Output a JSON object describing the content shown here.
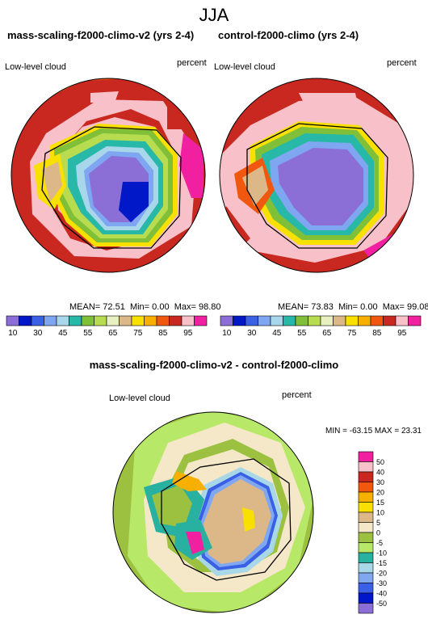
{
  "figure": {
    "title": "JJA",
    "panels": [
      {
        "id": "test",
        "title": "mass-scaling-f2000-climo-v2 (yrs 2-4)",
        "variable": "Low-level cloud",
        "units": "percent",
        "stats": {
          "mean_label": "MEAN=",
          "mean": "72.51",
          "min_label": "Min=",
          "min": "0.00",
          "max_label": "Max=",
          "max": "98.80"
        }
      },
      {
        "id": "control",
        "title": "control-f2000-climo (yrs 2-4)",
        "variable": "Low-level cloud",
        "units": "percent",
        "stats": {
          "mean_label": "MEAN=",
          "mean": "73.83",
          "min_label": "Min=",
          "min": "0.00",
          "max_label": "Max=",
          "max": "99.08"
        }
      }
    ],
    "diff_panel": {
      "title": "mass-scaling-f2000-climo-v2 - control-f2000-climo",
      "variable": "Low-level cloud",
      "units": "percent",
      "stats": "MIN = -63.15 MAX = 23.31"
    },
    "abs_colorbar": {
      "labels": [
        "10",
        "30",
        "45",
        "55",
        "65",
        "75",
        "85",
        "95"
      ],
      "colors": [
        "#8b6fd6",
        "#0018c8",
        "#3a60e6",
        "#7fa6f0",
        "#a8d6ea",
        "#28b8a8",
        "#80c038",
        "#b8dc50",
        "#e8f0c0",
        "#dcb888",
        "#f8e000",
        "#f8b000",
        "#f05810",
        "#c82820",
        "#f8c0c8",
        "#f020a0"
      ]
    },
    "diff_colorbar": {
      "labels": [
        "50",
        "40",
        "30",
        "20",
        "15",
        "10",
        "5",
        "0",
        "-5",
        "-10",
        "-15",
        "-20",
        "-30",
        "-40",
        "-50"
      ],
      "colors": [
        "#f020a0",
        "#f8c0c8",
        "#c82820",
        "#f05810",
        "#f8b000",
        "#f8e000",
        "#dcb888",
        "#f5e8c8",
        "#9cc040",
        "#b8e868",
        "#28b0a0",
        "#a8d8e8",
        "#80a8f0",
        "#3a60e6",
        "#0018c8",
        "#8b6fd6"
      ]
    }
  }
}
